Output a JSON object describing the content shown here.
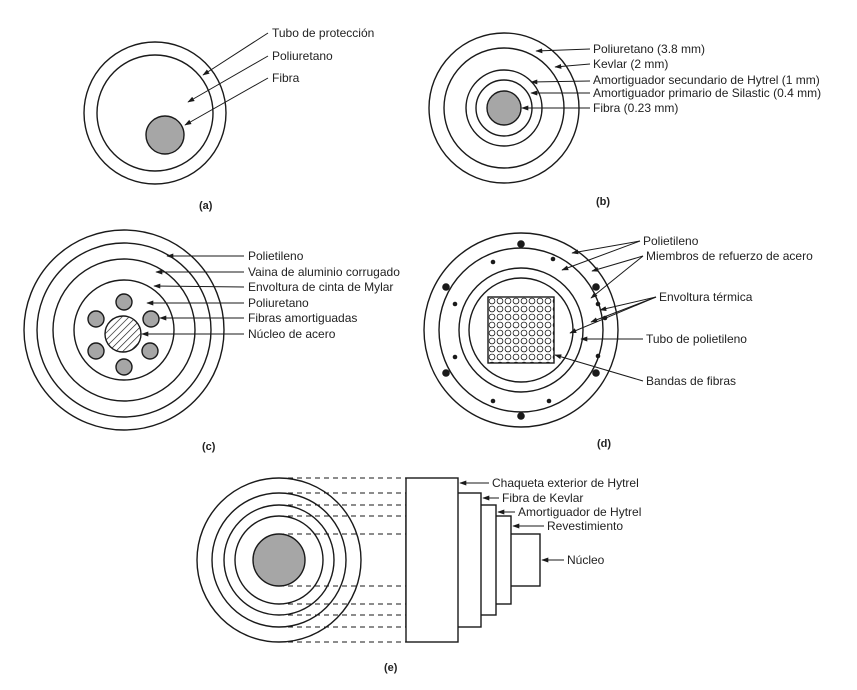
{
  "colors": {
    "stroke": "#1a1a1a",
    "fill_gray": "#a6a6a6",
    "background": "#ffffff"
  },
  "figures": {
    "a": {
      "caption": "(a)",
      "labels": [
        "Tubo de protección",
        "Poliuretano",
        "Fibra"
      ]
    },
    "b": {
      "caption": "(b)",
      "labels": [
        "Poliuretano (3.8 mm)",
        "Kevlar (2 mm)",
        "Amortiguador secundario de Hytrel (1 mm)",
        "Amortiguador primario de Silastic (0.4 mm)",
        "Fibra (0.23 mm)"
      ]
    },
    "c": {
      "caption": "(c)",
      "labels": [
        "Polietileno",
        "Vaina de aluminio corrugado",
        "Envoltura de cinta de Mylar",
        "Poliuretano",
        "Fibras amortiguadas",
        "Núcleo de acero"
      ]
    },
    "d": {
      "caption": "(d)",
      "labels": [
        "Polietileno",
        "Miembros de refuerzo de acero",
        "Envoltura térmica",
        "Tubo de polietileno",
        "Bandas de fibras"
      ]
    },
    "e": {
      "caption": "(e)",
      "labels": [
        "Chaqueta exterior de Hytrel",
        "Fibra de Kevlar",
        "Amortiguador de Hytrel",
        "Revestimiento",
        "Núcleo"
      ]
    }
  }
}
